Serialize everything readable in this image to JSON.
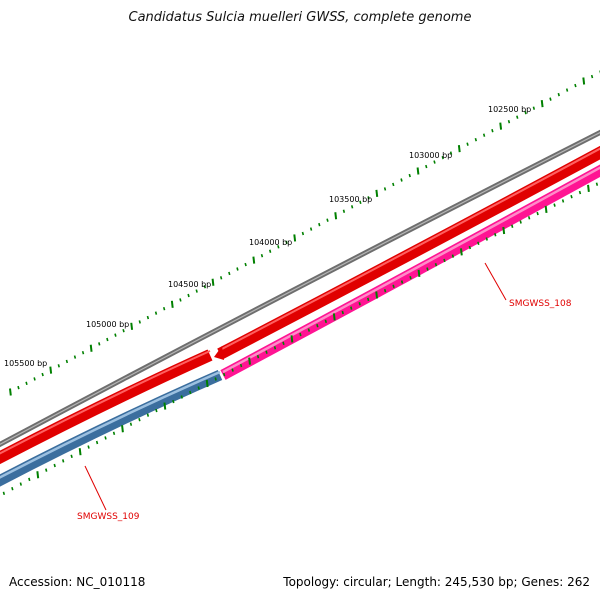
{
  "title": "Candidatus Sulcia muelleri GWSS, complete genome",
  "footer": {
    "accession": "Accession: NC_010118",
    "summary": "Topology: circular; Length: 245,530 bp; Genes: 262"
  },
  "ruler": {
    "labels": [
      "102500 bp",
      "103000 bp",
      "103500 bp",
      "104000 bp",
      "104500 bp",
      "105000 bp",
      "105500 bp"
    ]
  },
  "genes": [
    {
      "label": "SMGWSS_108",
      "color": "#ff1493",
      "strand": "forward"
    },
    {
      "label": "SMGWSS_109",
      "color": "#4682b4",
      "strand": "reverse"
    }
  ],
  "colors": {
    "backbone": "#808080",
    "cds_track": "#ff0000",
    "tick": "#008000",
    "label": "#e00000"
  }
}
